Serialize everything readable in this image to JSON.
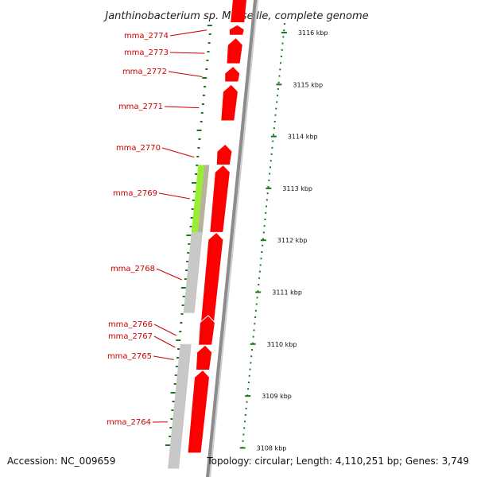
{
  "title": "Janthinobacterium sp. Marseille, complete genome",
  "footer": {
    "accession": "Accession: NC_009659",
    "stats": "Topology: circular; Length: 4,110,251 bp; Genes: 3,749"
  },
  "colors": {
    "cds": "#ff0000",
    "cds_shade": "#cc0000",
    "blast_gray": "#c8c8c8",
    "blast_green": "#99ee33",
    "backbone": "#8c8c8c",
    "ticks": "#1a7a1a",
    "label": "#cc0000"
  },
  "genes": [
    {
      "label": "mma_2774",
      "kbp": 3116.05,
      "dir": "forward",
      "start": 3115.95,
      "end": 3116.15
    },
    {
      "label": "mma_2773",
      "kbp": 3115.6,
      "dir": "forward",
      "start": 3115.4,
      "end": 3115.9
    },
    {
      "label": "mma_2772",
      "kbp": 3115.15,
      "dir": "forward",
      "start": 3115.05,
      "end": 3115.35
    },
    {
      "label": "mma_2771",
      "kbp": 3114.55,
      "dir": "forward",
      "start": 3114.3,
      "end": 3115.0
    },
    {
      "label": "mma_2770",
      "kbp": 3113.6,
      "dir": "forward",
      "start": 3113.45,
      "end": 3113.85
    },
    {
      "label": "mma_2769",
      "kbp": 3112.8,
      "dir": "forward",
      "start": 3112.15,
      "end": 3113.45
    },
    {
      "label": "mma_2768",
      "kbp": 3110.9,
      "dir": "forward",
      "start": 3110.4,
      "end": 3112.15
    },
    {
      "label": "mma_2766",
      "kbp": 3110.0,
      "dir": "forward",
      "start": 3109.98,
      "end": 3110.55
    },
    {
      "label": "mma_2767",
      "kbp": 3109.9,
      "dir": "forward",
      "start": 3109.5,
      "end": 3109.98
    },
    {
      "label": "mma_2765",
      "kbp": 3109.7,
      "dir": "forward",
      "start": 3109.5,
      "end": 3109.98
    },
    {
      "label": "mma_2764",
      "kbp": 3108.5,
      "dir": "forward",
      "start": 3107.9,
      "end": 3109.5
    }
  ],
  "blast_hits": [
    {
      "kind": "green",
      "start": 3112.15,
      "end": 3113.45
    },
    {
      "kind": "gray",
      "start": 3110.6,
      "end": 3112.15
    },
    {
      "kind": "gray",
      "start": 3109.5,
      "end": 3110.0
    },
    {
      "kind": "gray",
      "start": 3107.6,
      "end": 3109.5
    }
  ],
  "scale": {
    "unit": "kbp",
    "labels": [
      "3116 kbp",
      "3115 kbp",
      "3114 kbp",
      "3113 kbp",
      "3112 kbp",
      "3111 kbp",
      "3110 kbp",
      "3109 kbp",
      "3108 kbp"
    ],
    "values": [
      3116,
      3115,
      3114,
      3113,
      3112,
      3111,
      3110,
      3109,
      3108
    ],
    "range": [
      3107.6,
      3116.35
    ]
  }
}
